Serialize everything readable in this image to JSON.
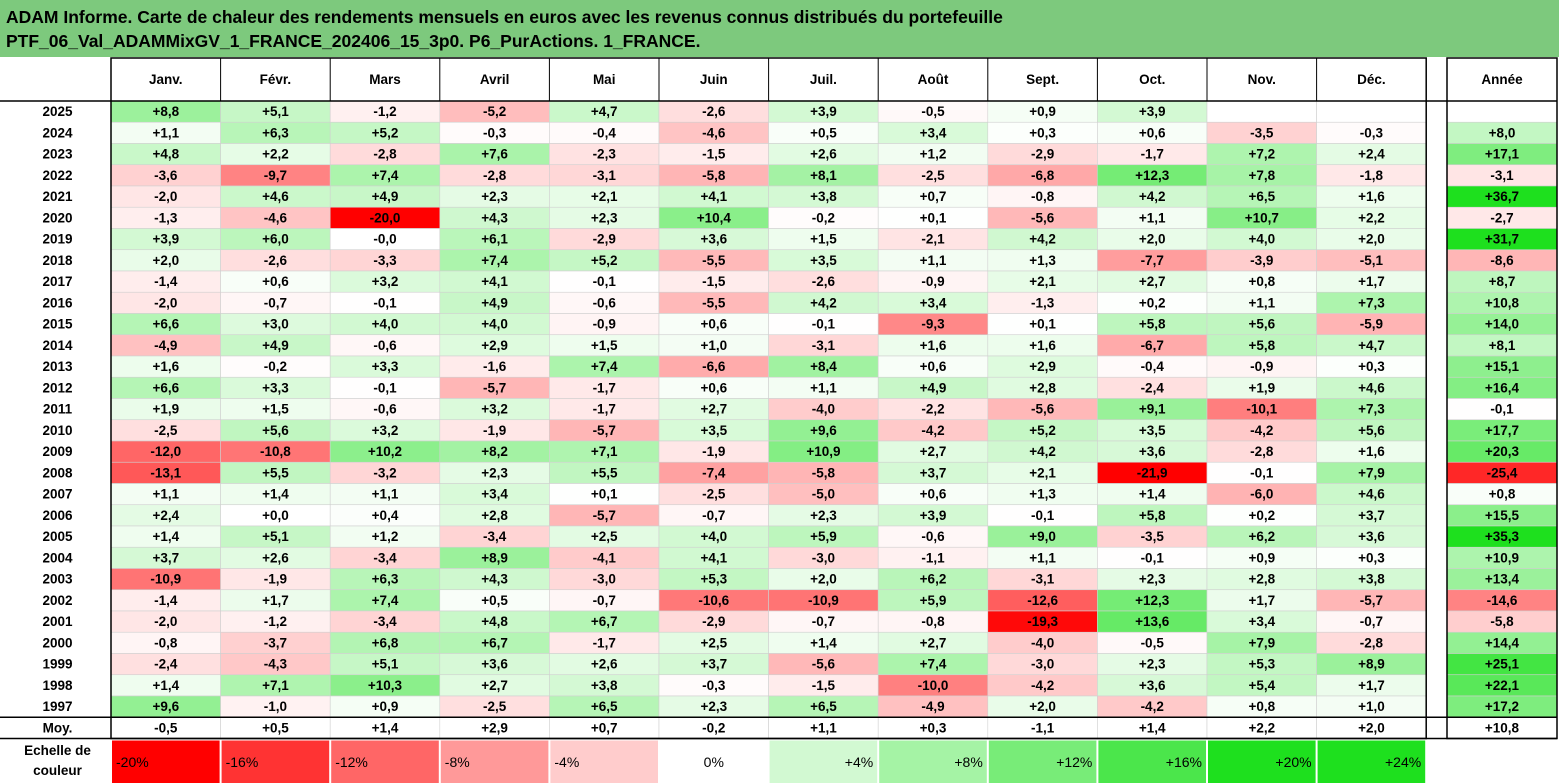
{
  "header": {
    "title_line1": "ADAM Informe. Carte de chaleur des rendements mensuels en euros avec les revenus connus distribués du portefeuille",
    "title_line2": "PTF_06_Val_ADAMMixGV_1_FRANCE_202406_15_3p0. P6_PurActions. 1_FRANCE."
  },
  "chart_data": {
    "type": "heatmap",
    "title": "ADAM Informe. Carte de chaleur des rendements mensuels en euros avec les revenus connus distribués du portefeuille PTF_06_Val_ADAMMixGV_1_FRANCE_202406_15_3p0. P6_PurActions. 1_FRANCE.",
    "columns": [
      "Janv.",
      "Févr.",
      "Mars",
      "Avril",
      "Mai",
      "Juin",
      "Juil.",
      "Août",
      "Sept.",
      "Oct.",
      "Nov.",
      "Déc."
    ],
    "annual_column": "Année",
    "rows": [
      {
        "year": "2025",
        "values": [
          "+8,8",
          "+5,1",
          "-1,2",
          "-5,2",
          "+4,7",
          "-2,6",
          "+3,9",
          "-0,5",
          "+0,9",
          "+3,9",
          "",
          ""
        ],
        "annual": ""
      },
      {
        "year": "2024",
        "values": [
          "+1,1",
          "+6,3",
          "+5,2",
          "-0,3",
          "-0,4",
          "-4,6",
          "+0,5",
          "+3,4",
          "+0,3",
          "+0,6",
          "-3,5",
          "-0,3"
        ],
        "annual": "+8,0"
      },
      {
        "year": "2023",
        "values": [
          "+4,8",
          "+2,2",
          "-2,8",
          "+7,6",
          "-2,3",
          "-1,5",
          "+2,6",
          "+1,2",
          "-2,9",
          "-1,7",
          "+7,2",
          "+2,4"
        ],
        "annual": "+17,1"
      },
      {
        "year": "2022",
        "values": [
          "-3,6",
          "-9,7",
          "+7,4",
          "-2,8",
          "-3,1",
          "-5,8",
          "+8,1",
          "-2,5",
          "-6,8",
          "+12,3",
          "+7,8",
          "-1,8"
        ],
        "annual": "-3,1"
      },
      {
        "year": "2021",
        "values": [
          "-2,0",
          "+4,6",
          "+4,9",
          "+2,3",
          "+2,1",
          "+4,1",
          "+3,8",
          "+0,7",
          "-0,8",
          "+4,2",
          "+6,5",
          "+1,6"
        ],
        "annual": "+36,7"
      },
      {
        "year": "2020",
        "values": [
          "-1,3",
          "-4,6",
          "-20,0",
          "+4,3",
          "+2,3",
          "+10,4",
          "-0,2",
          "+0,1",
          "-5,6",
          "+1,1",
          "+10,7",
          "+2,2"
        ],
        "annual": "-2,7"
      },
      {
        "year": "2019",
        "values": [
          "+3,9",
          "+6,0",
          "-0,0",
          "+6,1",
          "-2,9",
          "+3,6",
          "+1,5",
          "-2,1",
          "+4,2",
          "+2,0",
          "+4,0",
          "+2,0"
        ],
        "annual": "+31,7"
      },
      {
        "year": "2018",
        "values": [
          "+2,0",
          "-2,6",
          "-3,3",
          "+7,4",
          "+5,2",
          "-5,5",
          "+3,5",
          "+1,1",
          "+1,3",
          "-7,7",
          "-3,9",
          "-5,1"
        ],
        "annual": "-8,6"
      },
      {
        "year": "2017",
        "values": [
          "-1,4",
          "+0,6",
          "+3,2",
          "+4,1",
          "-0,1",
          "-1,5",
          "-2,6",
          "-0,9",
          "+2,1",
          "+2,7",
          "+0,8",
          "+1,7"
        ],
        "annual": "+8,7"
      },
      {
        "year": "2016",
        "values": [
          "-2,0",
          "-0,7",
          "-0,1",
          "+4,9",
          "-0,6",
          "-5,5",
          "+4,2",
          "+3,4",
          "-1,3",
          "+0,2",
          "+1,1",
          "+7,3"
        ],
        "annual": "+10,8"
      },
      {
        "year": "2015",
        "values": [
          "+6,6",
          "+3,0",
          "+4,0",
          "+4,0",
          "-0,9",
          "+0,6",
          "-0,1",
          "-9,3",
          "+0,1",
          "+5,8",
          "+5,6",
          "-5,9"
        ],
        "annual": "+14,0"
      },
      {
        "year": "2014",
        "values": [
          "-4,9",
          "+4,9",
          "-0,6",
          "+2,9",
          "+1,5",
          "+1,0",
          "-3,1",
          "+1,6",
          "+1,6",
          "-6,7",
          "+5,8",
          "+4,7"
        ],
        "annual": "+8,1"
      },
      {
        "year": "2013",
        "values": [
          "+1,6",
          "-0,2",
          "+3,3",
          "-1,6",
          "+7,4",
          "-6,6",
          "+8,4",
          "+0,6",
          "+2,9",
          "-0,4",
          "-0,9",
          "+0,3"
        ],
        "annual": "+15,1"
      },
      {
        "year": "2012",
        "values": [
          "+6,6",
          "+3,3",
          "-0,1",
          "-5,7",
          "-1,7",
          "+0,6",
          "+1,1",
          "+4,9",
          "+2,8",
          "-2,4",
          "+1,9",
          "+4,6"
        ],
        "annual": "+16,4"
      },
      {
        "year": "2011",
        "values": [
          "+1,9",
          "+1,5",
          "-0,6",
          "+3,2",
          "-1,7",
          "+2,7",
          "-4,0",
          "-2,2",
          "-5,6",
          "+9,1",
          "-10,1",
          "+7,3"
        ],
        "annual": "-0,1"
      },
      {
        "year": "2010",
        "values": [
          "-2,5",
          "+5,6",
          "+3,2",
          "-1,9",
          "-5,7",
          "+3,5",
          "+9,6",
          "-4,2",
          "+5,2",
          "+3,5",
          "-4,2",
          "+5,6"
        ],
        "annual": "+17,7"
      },
      {
        "year": "2009",
        "values": [
          "-12,0",
          "-10,8",
          "+10,2",
          "+8,2",
          "+7,1",
          "-1,9",
          "+10,9",
          "+2,7",
          "+4,2",
          "+3,6",
          "-2,8",
          "+1,6"
        ],
        "annual": "+20,3"
      },
      {
        "year": "2008",
        "values": [
          "-13,1",
          "+5,5",
          "-3,2",
          "+2,3",
          "+5,5",
          "-7,4",
          "-5,8",
          "+3,7",
          "+2,1",
          "-21,9",
          "-0,1",
          "+7,9"
        ],
        "annual": "-25,4"
      },
      {
        "year": "2007",
        "values": [
          "+1,1",
          "+1,4",
          "+1,1",
          "+3,4",
          "+0,1",
          "-2,5",
          "-5,0",
          "+0,6",
          "+1,3",
          "+1,4",
          "-6,0",
          "+4,6"
        ],
        "annual": "+0,8"
      },
      {
        "year": "2006",
        "values": [
          "+2,4",
          "+0,0",
          "+0,4",
          "+2,8",
          "-5,7",
          "-0,7",
          "+2,3",
          "+3,9",
          "-0,1",
          "+5,8",
          "+0,2",
          "+3,7"
        ],
        "annual": "+15,5"
      },
      {
        "year": "2005",
        "values": [
          "+1,4",
          "+5,1",
          "+1,2",
          "-3,4",
          "+2,5",
          "+4,0",
          "+5,9",
          "-0,6",
          "+9,0",
          "-3,5",
          "+6,2",
          "+3,6"
        ],
        "annual": "+35,3"
      },
      {
        "year": "2004",
        "values": [
          "+3,7",
          "+2,6",
          "-3,4",
          "+8,9",
          "-4,1",
          "+4,1",
          "-3,0",
          "-1,1",
          "+1,1",
          "-0,1",
          "+0,9",
          "+0,3"
        ],
        "annual": "+10,9"
      },
      {
        "year": "2003",
        "values": [
          "-10,9",
          "-1,9",
          "+6,3",
          "+4,3",
          "-3,0",
          "+5,3",
          "+2,0",
          "+6,2",
          "-3,1",
          "+2,3",
          "+2,8",
          "+3,8"
        ],
        "annual": "+13,4"
      },
      {
        "year": "2002",
        "values": [
          "-1,4",
          "+1,7",
          "+7,4",
          "+0,5",
          "-0,7",
          "-10,6",
          "-10,9",
          "+5,9",
          "-12,6",
          "+12,3",
          "+1,7",
          "-5,7"
        ],
        "annual": "-14,6"
      },
      {
        "year": "2001",
        "values": [
          "-2,0",
          "-1,2",
          "-3,4",
          "+4,8",
          "+6,7",
          "-2,9",
          "-0,7",
          "-0,8",
          "-19,3",
          "+13,6",
          "+3,4",
          "-0,7"
        ],
        "annual": "-5,8"
      },
      {
        "year": "2000",
        "values": [
          "-0,8",
          "-3,7",
          "+6,8",
          "+6,7",
          "-1,7",
          "+2,5",
          "+1,4",
          "+2,7",
          "-4,0",
          "-0,5",
          "+7,9",
          "-2,8"
        ],
        "annual": "+14,4"
      },
      {
        "year": "1999",
        "values": [
          "-2,4",
          "-4,3",
          "+5,1",
          "+3,6",
          "+2,6",
          "+3,7",
          "-5,6",
          "+7,4",
          "-3,0",
          "+2,3",
          "+5,3",
          "+8,9"
        ],
        "annual": "+25,1"
      },
      {
        "year": "1998",
        "values": [
          "+1,4",
          "+7,1",
          "+10,3",
          "+2,7",
          "+3,8",
          "-0,3",
          "-1,5",
          "-10,0",
          "-4,2",
          "+3,6",
          "+5,4",
          "+1,7"
        ],
        "annual": "+22,1"
      },
      {
        "year": "1997",
        "values": [
          "+9,6",
          "-1,0",
          "+0,9",
          "-2,5",
          "+6,5",
          "+2,3",
          "+6,5",
          "-4,9",
          "+2,0",
          "-4,2",
          "+0,8",
          "+1,0"
        ],
        "annual": "+17,2"
      }
    ],
    "average_row": {
      "label": "Moy.",
      "values": [
        "-0,5",
        "+0,5",
        "+1,4",
        "+2,9",
        "+0,7",
        "-0,2",
        "+1,1",
        "+0,3",
        "-1,1",
        "+1,4",
        "+2,2",
        "+2,0"
      ],
      "annual": "+10,8"
    },
    "scale": {
      "label_line1": "Echelle de",
      "label_line2": "couleur",
      "stops": [
        "-20%",
        "-16%",
        "-12%",
        "-8%",
        "-4%",
        "0%",
        "+4%",
        "+8%",
        "+12%",
        "+16%",
        "+20%",
        "+24%"
      ]
    },
    "colors": {
      "title_bg": "#7dc97d",
      "strong_negative": "#ff0000",
      "neutral": "#ffffff",
      "strong_positive": "#20e020"
    }
  }
}
